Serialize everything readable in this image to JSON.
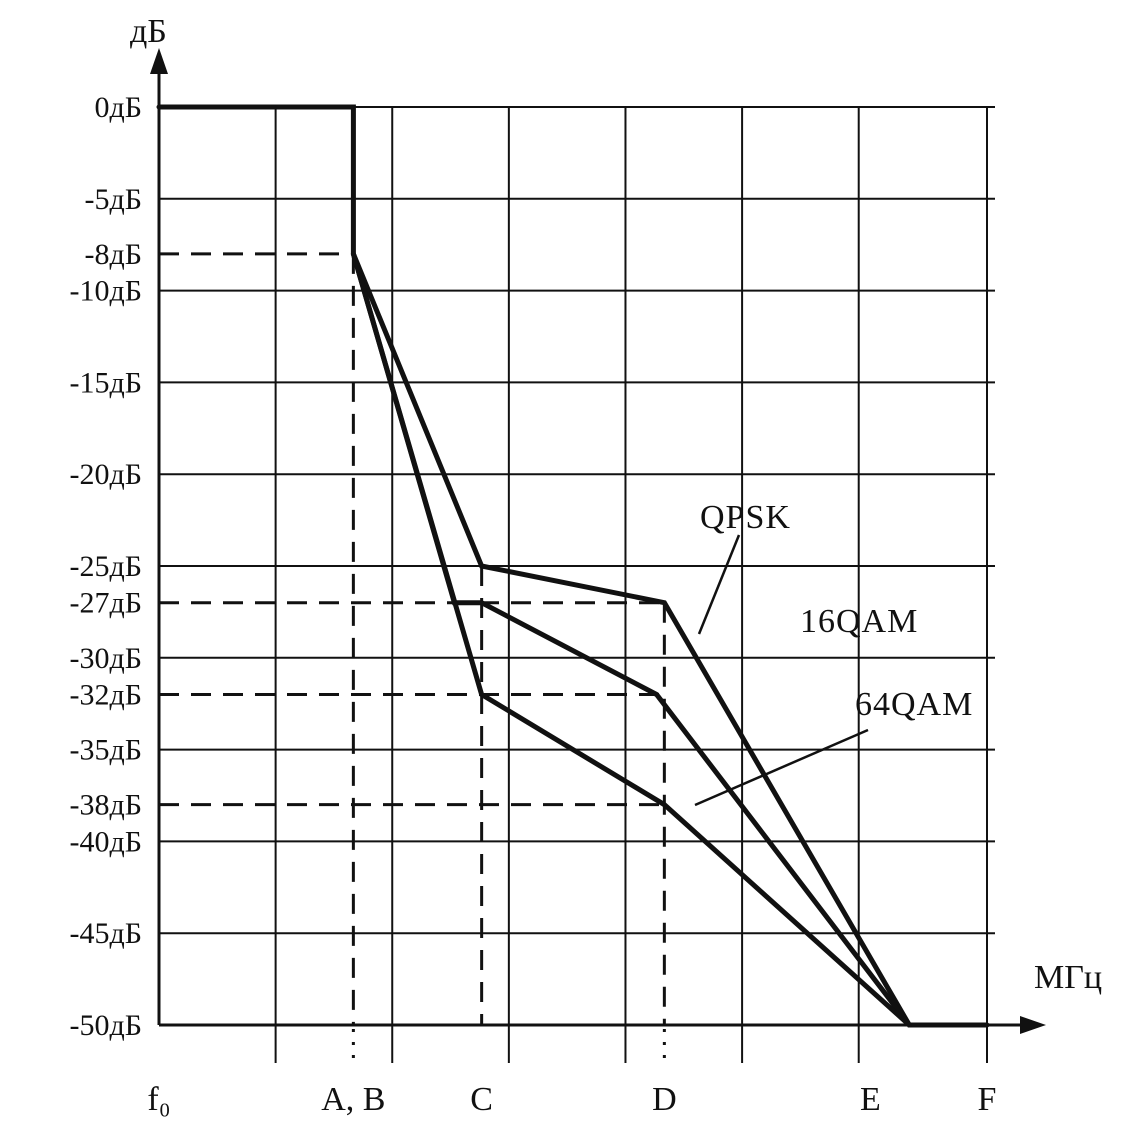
{
  "chart_data": {
    "type": "line",
    "y_axis_title": "дБ",
    "x_axis_title": "МГц",
    "y_tick_labels": [
      {
        "value": 0,
        "label": "0дБ"
      },
      {
        "value": -5,
        "label": "-5дБ"
      },
      {
        "value": -8,
        "label": "-8дБ"
      },
      {
        "value": -10,
        "label": "-10дБ"
      },
      {
        "value": -15,
        "label": "-15дБ"
      },
      {
        "value": -20,
        "label": "-20дБ"
      },
      {
        "value": -25,
        "label": "-25дБ"
      },
      {
        "value": -27,
        "label": "-27дБ"
      },
      {
        "value": -30,
        "label": "-30дБ"
      },
      {
        "value": -32,
        "label": "-32дБ"
      },
      {
        "value": -35,
        "label": "-35дБ"
      },
      {
        "value": -38,
        "label": "-38дБ"
      },
      {
        "value": -40,
        "label": "-40дБ"
      },
      {
        "value": -45,
        "label": "-45дБ"
      },
      {
        "value": -50,
        "label": "-50дБ"
      }
    ],
    "x_tick_labels": [
      {
        "value": 0,
        "label": "f₀"
      },
      {
        "value": 5,
        "label": "A, B"
      },
      {
        "value": 8.3,
        "label": "C"
      },
      {
        "value": 13,
        "label": "D"
      },
      {
        "value": 18.3,
        "label": "E"
      },
      {
        "value": 21.3,
        "label": "F"
      }
    ],
    "ylim": [
      -50,
      0
    ],
    "xlim": [
      0,
      21.3
    ],
    "grid": true,
    "grid_y": [
      0,
      -5,
      -10,
      -15,
      -20,
      -25,
      -30,
      -35,
      -40,
      -45,
      -50
    ],
    "grid_x": [
      0,
      3,
      6,
      9,
      12,
      15,
      18,
      21.3
    ],
    "series": [
      {
        "name": "QPSK",
        "x": [
          0,
          5,
          5,
          8.3,
          13,
          19.3,
          21.3
        ],
        "y": [
          0,
          0,
          -8,
          -25,
          -27,
          -50,
          -50
        ]
      },
      {
        "name": "16QAM",
        "x": [
          5,
          7.6,
          8.3,
          12.8,
          19.3
        ],
        "y": [
          -8,
          -27,
          -27,
          -32,
          -50
        ]
      },
      {
        "name": "64QAM",
        "x": [
          5,
          8.3,
          13,
          19.3
        ],
        "y": [
          -8,
          -32,
          -38,
          -50
        ]
      }
    ],
    "reference_lines": [
      {
        "x": [
          0,
          5
        ],
        "y": [
          -8,
          -8
        ]
      },
      {
        "x": [
          0,
          13
        ],
        "y": [
          -27,
          -27
        ]
      },
      {
        "x": [
          0,
          13
        ],
        "y": [
          -32,
          -32
        ]
      },
      {
        "x": [
          0,
          13
        ],
        "y": [
          -38,
          -38
        ]
      },
      {
        "x": [
          5,
          5
        ],
        "y": [
          -8,
          -50
        ]
      },
      {
        "x": [
          8.3,
          8.3
        ],
        "y": [
          -25,
          -50
        ]
      },
      {
        "x": [
          13,
          13
        ],
        "y": [
          -27,
          -50
        ]
      }
    ],
    "annotations": [
      {
        "text": "QPSK",
        "target": "QPSK"
      },
      {
        "text": "16QAM",
        "target": "16QAM"
      },
      {
        "text": "64QAM",
        "target": "64QAM"
      }
    ]
  }
}
